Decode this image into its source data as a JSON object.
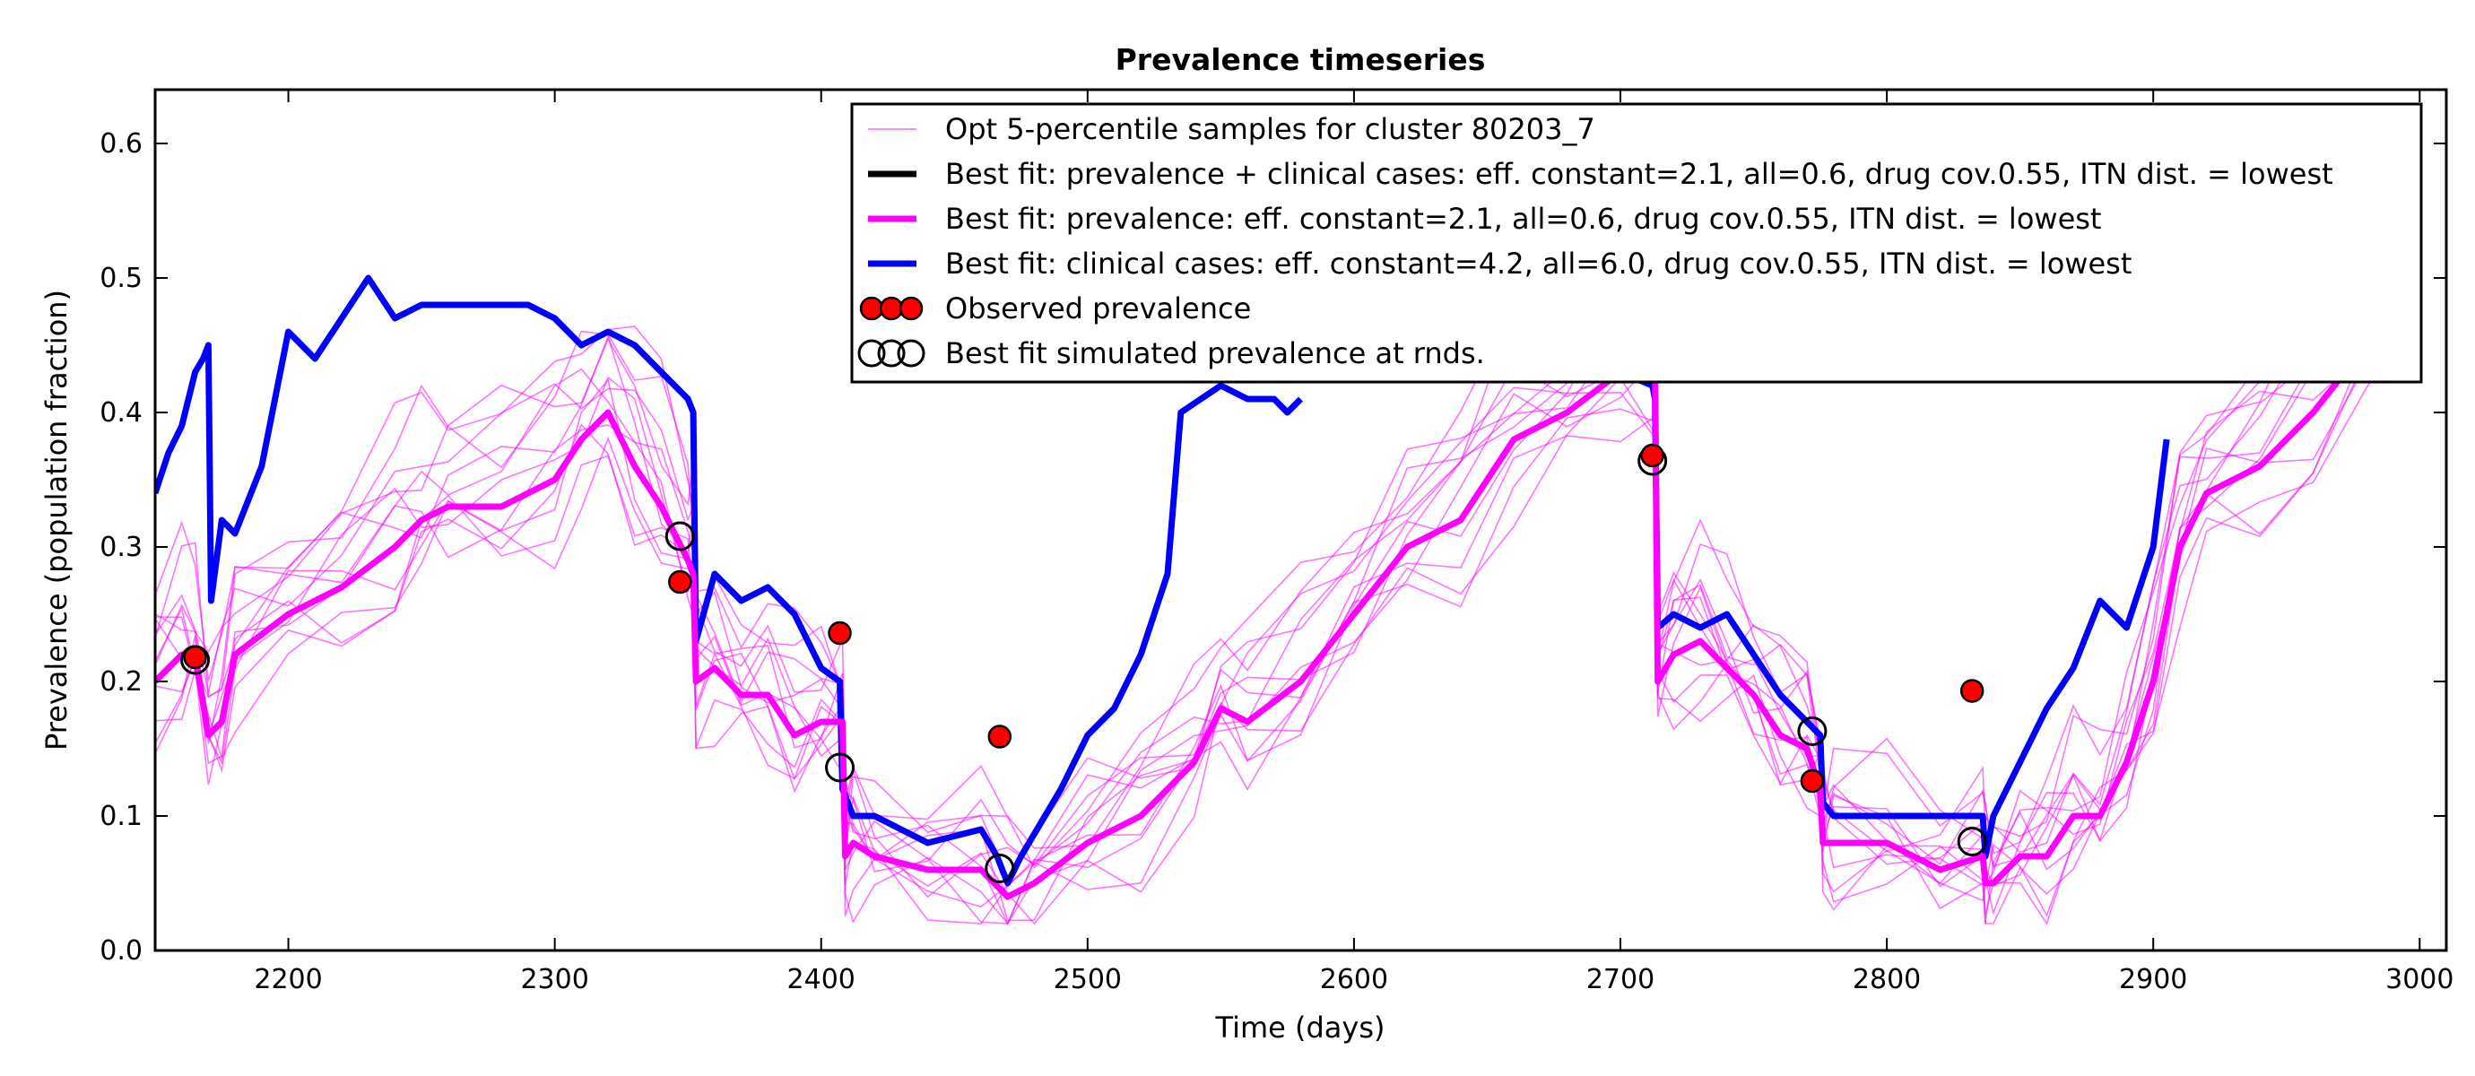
{
  "chart_data": {
    "type": "line",
    "title": "Prevalence timeseries",
    "xlabel": "Time (days)",
    "ylabel": "Prevalence (population fraction)",
    "xlim": [
      2150,
      3010
    ],
    "ylim": [
      0.0,
      0.64
    ],
    "xticks": [
      2200,
      2300,
      2400,
      2500,
      2600,
      2700,
      2800,
      2900,
      3000
    ],
    "yticks": [
      0.0,
      0.1,
      0.2,
      0.3,
      0.4,
      0.5,
      0.6
    ],
    "xtick_labels": [
      "2200",
      "2300",
      "2400",
      "2500",
      "2600",
      "2700",
      "2800",
      "2900",
      "3000"
    ],
    "ytick_labels": [
      "0.0",
      "0.1",
      "0.2",
      "0.3",
      "0.4",
      "0.5",
      "0.6"
    ],
    "grid": false,
    "legend_position": "top-right",
    "legend": [
      {
        "label": "Opt 5-percentile samples for cluster 80203_7",
        "kind": "line",
        "color": "#ff00ff",
        "width": "thin"
      },
      {
        "label": "Best fit: prevalence + clinical cases: eff. constant=2.1, all=0.6, drug cov.0.55, ITN dist. = lowest",
        "kind": "line",
        "color": "#000000",
        "width": "thick"
      },
      {
        "label": "Best fit: prevalence: eff. constant=2.1, all=0.6, drug cov.0.55, ITN dist. = lowest",
        "kind": "line",
        "color": "#ff00ff",
        "width": "thick"
      },
      {
        "label": "Best fit: clinical cases: eff. constant=4.2, all=6.0, drug cov.0.55, ITN dist. = lowest",
        "kind": "line",
        "color": "#0000ff",
        "width": "thick"
      },
      {
        "label": "Observed prevalence",
        "kind": "marker",
        "color": "#ff0000"
      },
      {
        "label": "Best fit simulated prevalence at rnds.",
        "kind": "marker-open",
        "color": "#000000"
      }
    ],
    "series": [
      {
        "name": "Best fit: clinical cases: eff. constant=4.2, all=6.0, drug cov.0.55, ITN dist. = lowest",
        "color": "#0000ff",
        "x": [
          2150,
          2155,
          2160,
          2165,
          2168,
          2170,
          2171,
          2175,
          2180,
          2190,
          2200,
          2210,
          2220,
          2230,
          2240,
          2250,
          2270,
          2290,
          2300,
          2310,
          2320,
          2330,
          2340,
          2350,
          2352,
          2353,
          2360,
          2370,
          2380,
          2390,
          2400,
          2407,
          2408,
          2412,
          2420,
          2440,
          2460,
          2466,
          2470,
          2475,
          2490,
          2500,
          2510,
          2520,
          2530,
          2535,
          2550,
          2560,
          2570,
          2575,
          2580
        ],
        "y": [
          0.34,
          0.37,
          0.39,
          0.43,
          0.44,
          0.45,
          0.26,
          0.32,
          0.31,
          0.36,
          0.46,
          0.44,
          0.47,
          0.5,
          0.47,
          0.48,
          0.48,
          0.48,
          0.47,
          0.45,
          0.46,
          0.45,
          0.43,
          0.41,
          0.4,
          0.23,
          0.28,
          0.26,
          0.27,
          0.25,
          0.21,
          0.2,
          0.12,
          0.1,
          0.1,
          0.08,
          0.09,
          0.07,
          0.05,
          0.07,
          0.12,
          0.16,
          0.18,
          0.22,
          0.28,
          0.4,
          0.42,
          0.41,
          0.41,
          0.4,
          0.41
        ]
      },
      {
        "name": "Best fit: clinical cases: eff. constant=4.2, all=6.0, drug cov.0.55, ITN dist. = lowest",
        "color": "#0000ff",
        "x": [
          2700,
          2712,
          2713,
          2714,
          2720,
          2730,
          2740,
          2750,
          2760,
          2770,
          2775,
          2776,
          2780,
          2790,
          2800,
          2810,
          2820,
          2830,
          2836,
          2837,
          2840,
          2850,
          2860,
          2870,
          2880,
          2890,
          2900,
          2905
        ],
        "y": [
          0.43,
          0.42,
          0.41,
          0.24,
          0.25,
          0.24,
          0.25,
          0.22,
          0.19,
          0.17,
          0.16,
          0.11,
          0.1,
          0.1,
          0.1,
          0.1,
          0.1,
          0.1,
          0.1,
          0.07,
          0.1,
          0.14,
          0.18,
          0.21,
          0.26,
          0.24,
          0.3,
          0.38
        ]
      },
      {
        "name": "Best fit: prevalence: eff. constant=2.1, all=0.6, drug cov.0.55, ITN dist. = lowest",
        "color": "#ff00ff",
        "x": [
          2150,
          2160,
          2165,
          2170,
          2175,
          2180,
          2200,
          2220,
          2240,
          2250,
          2260,
          2280,
          2300,
          2310,
          2320,
          2330,
          2340,
          2350,
          2352,
          2353,
          2360,
          2370,
          2380,
          2390,
          2400,
          2408,
          2409,
          2412,
          2420,
          2440,
          2460,
          2470,
          2480,
          2500,
          2520,
          2540,
          2550,
          2560,
          2580,
          2600,
          2620,
          2640,
          2660,
          2680,
          2700,
          2712,
          2713,
          2714,
          2720,
          2730,
          2740,
          2750,
          2760,
          2770,
          2775,
          2776,
          2780,
          2800,
          2820,
          2836,
          2837,
          2840,
          2850,
          2860,
          2870,
          2880,
          2890,
          2900,
          2910,
          2920,
          2940,
          2960,
          2980,
          3000
        ],
        "y": [
          0.2,
          0.22,
          0.22,
          0.16,
          0.17,
          0.22,
          0.25,
          0.27,
          0.3,
          0.32,
          0.33,
          0.33,
          0.35,
          0.38,
          0.4,
          0.36,
          0.33,
          0.29,
          0.28,
          0.2,
          0.21,
          0.19,
          0.19,
          0.16,
          0.17,
          0.17,
          0.07,
          0.08,
          0.07,
          0.06,
          0.06,
          0.04,
          0.05,
          0.08,
          0.1,
          0.14,
          0.18,
          0.17,
          0.2,
          0.25,
          0.3,
          0.32,
          0.38,
          0.4,
          0.43,
          0.43,
          0.43,
          0.2,
          0.22,
          0.23,
          0.21,
          0.19,
          0.16,
          0.15,
          0.12,
          0.08,
          0.08,
          0.08,
          0.06,
          0.07,
          0.05,
          0.05,
          0.07,
          0.07,
          0.1,
          0.1,
          0.14,
          0.2,
          0.3,
          0.34,
          0.36,
          0.4,
          0.45,
          0.48
        ]
      }
    ],
    "samples": [
      {
        "name": "Opt 5-percentile samples for cluster 80203_7",
        "color": "#ff00ff",
        "shift": 0.0
      },
      {
        "name": "Opt 5-percentile samples for cluster 80203_7",
        "color": "#ff00ff",
        "shift": 0.04
      },
      {
        "name": "Opt 5-percentile samples for cluster 80203_7",
        "color": "#ff00ff",
        "shift": -0.03
      },
      {
        "name": "Opt 5-percentile samples for cluster 80203_7",
        "color": "#ff00ff",
        "shift": 0.07
      },
      {
        "name": "Opt 5-percentile samples for cluster 80203_7",
        "color": "#ff00ff",
        "shift": -0.05
      },
      {
        "name": "Opt 5-percentile samples for cluster 80203_7",
        "color": "#ff00ff",
        "shift": 0.1
      },
      {
        "name": "Opt 5-percentile samples for cluster 80203_7",
        "color": "#ff00ff",
        "shift": 0.02
      },
      {
        "name": "Opt 5-percentile samples for cluster 80203_7",
        "color": "#ff00ff",
        "shift": -0.01
      },
      {
        "name": "Opt 5-percentile samples for cluster 80203_7",
        "color": "#ff00ff",
        "shift": 0.05
      },
      {
        "name": "Opt 5-percentile samples for cluster 80203_7",
        "color": "#ff00ff",
        "shift": 0.08
      },
      {
        "name": "Opt 5-percentile samples for cluster 80203_7",
        "color": "#ff00ff",
        "shift": -0.04
      },
      {
        "name": "Opt 5-percentile samples for cluster 80203_7",
        "color": "#ff00ff",
        "shift": 0.12
      }
    ],
    "observed_prevalence": {
      "name": "Observed prevalence",
      "color": "#ff0000",
      "x": [
        2165,
        2347,
        2407,
        2467,
        2712,
        2772,
        2832
      ],
      "y": [
        0.218,
        0.274,
        0.236,
        0.159,
        0.368,
        0.126,
        0.193
      ]
    },
    "simulated_at_rounds": {
      "name": "Best fit simulated prevalence at rnds.",
      "color": "#000000",
      "x": [
        2165,
        2347,
        2407,
        2467,
        2712,
        2772,
        2832
      ],
      "y": [
        0.216,
        0.308,
        0.136,
        0.061,
        0.364,
        0.163,
        0.081
      ]
    }
  }
}
